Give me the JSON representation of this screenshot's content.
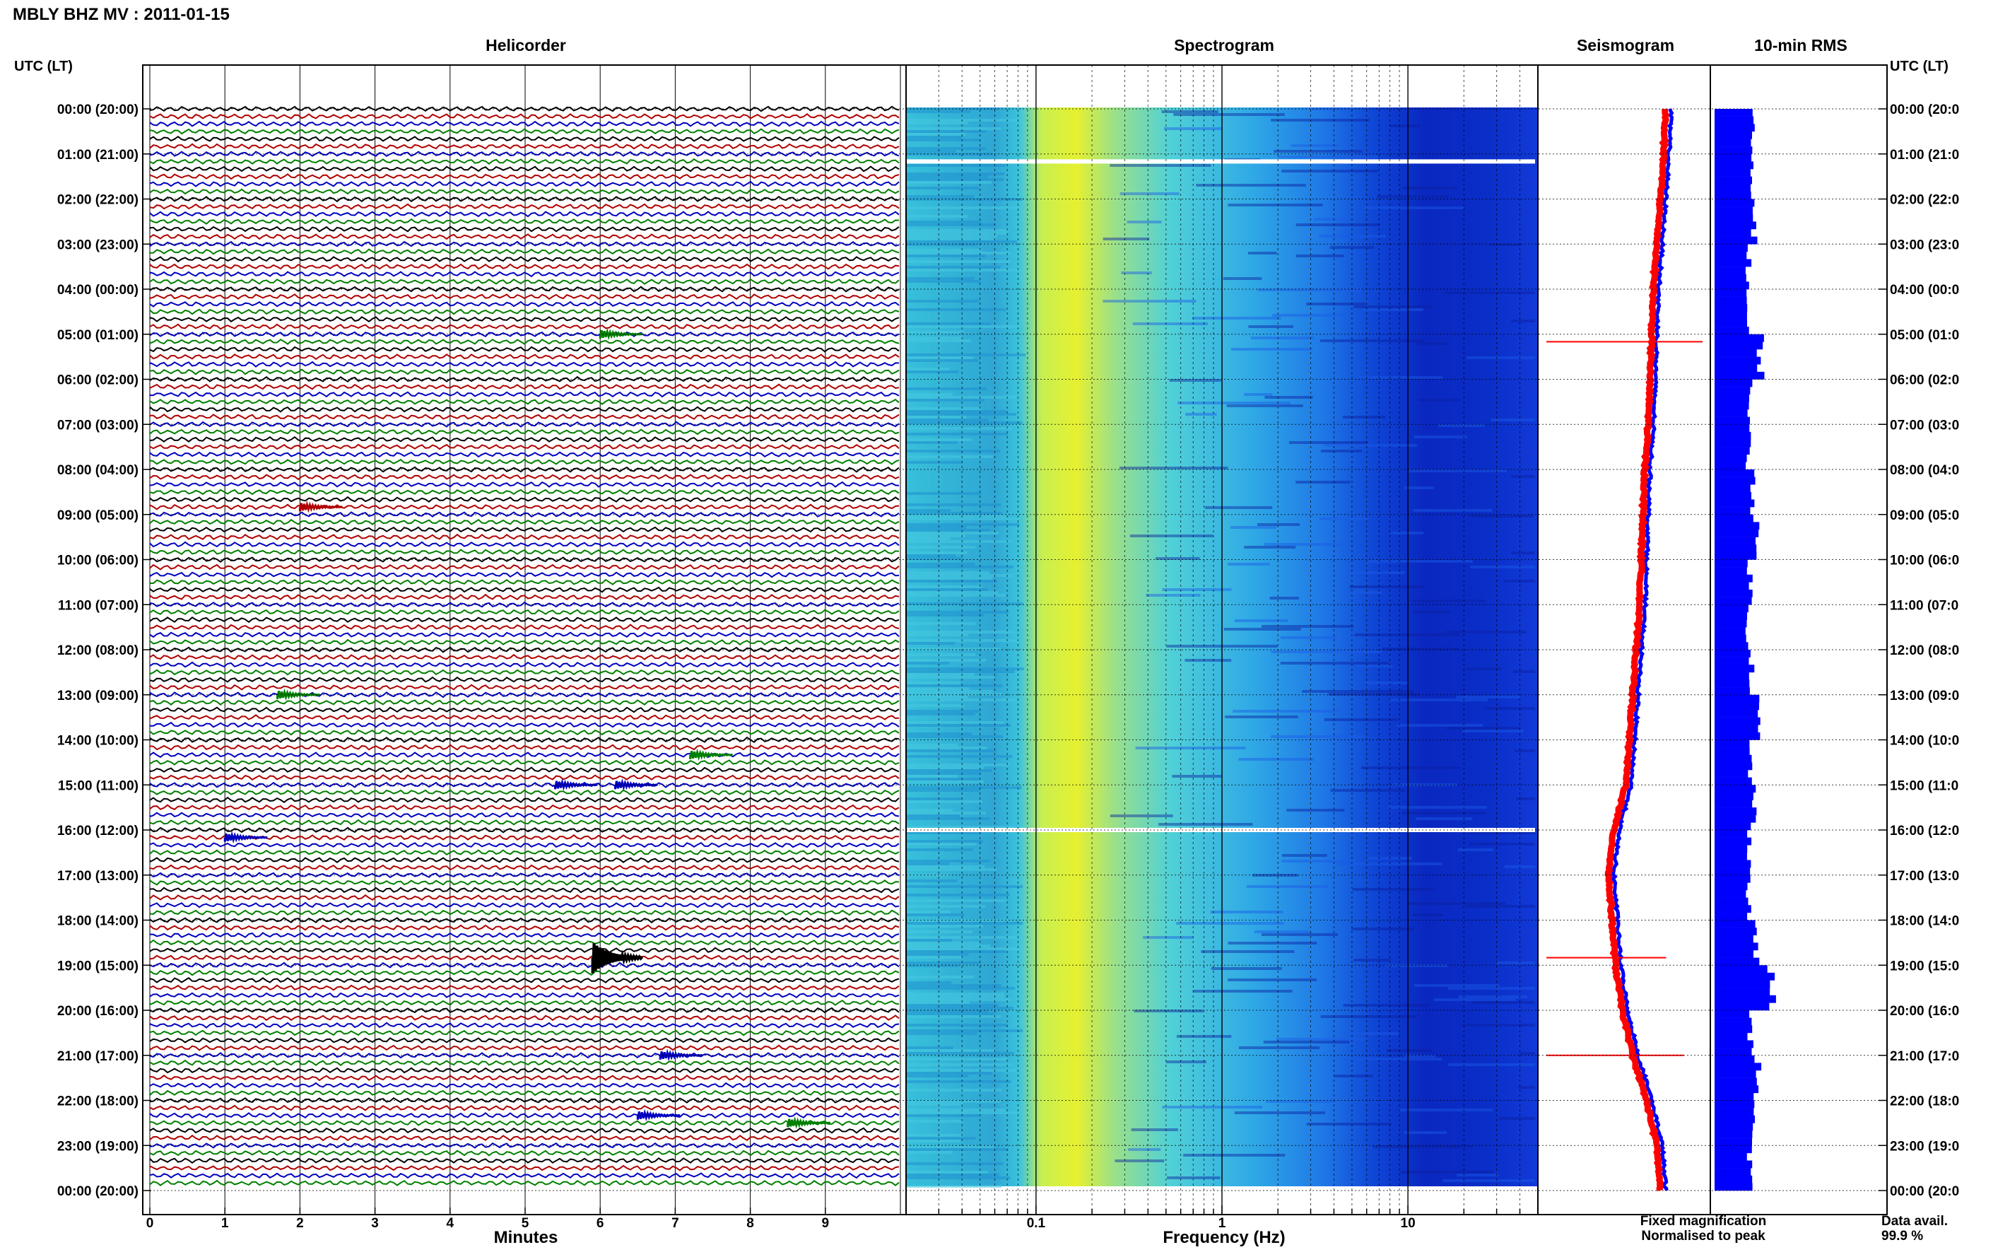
{
  "station_title": "MBLY BHZ MV : 2011-01-15",
  "panels": {
    "helicorder": "Helicorder",
    "spectrogram": "Spectrogram",
    "seismogram": "Seismogram",
    "rms": "10-min RMS"
  },
  "time_axis": {
    "left_title": "UTC (LT)",
    "right_title": "UTC (LT)",
    "labels": [
      "00:00 (20:00)",
      "01:00 (21:00)",
      "02:00 (22:00)",
      "03:00 (23:00)",
      "04:00 (00:00)",
      "05:00 (01:00)",
      "06:00 (02:00)",
      "07:00 (03:00)",
      "08:00 (04:00)",
      "09:00 (05:00)",
      "10:00 (06:00)",
      "11:00 (07:00)",
      "12:00 (08:00)",
      "13:00 (09:00)",
      "14:00 (10:00)",
      "15:00 (11:00)",
      "16:00 (12:00)",
      "17:00 (13:00)",
      "18:00 (14:00)",
      "19:00 (15:00)",
      "20:00 (16:00)",
      "21:00 (17:00)",
      "22:00 (18:00)",
      "23:00 (19:00)",
      "00:00 (20:00)"
    ],
    "right_labels": [
      "00:00 (20:0",
      "01:00 (21:0",
      "02:00 (22:0",
      "03:00 (23:0",
      "04:00 (00:0",
      "05:00 (01:0",
      "06:00 (02:0",
      "07:00 (03:0",
      "08:00 (04:0",
      "09:00 (05:0",
      "10:00 (06:0",
      "11:00 (07:0",
      "12:00 (08:0",
      "13:00 (09:0",
      "14:00 (10:0",
      "15:00 (11:0",
      "16:00 (12:0",
      "17:00 (13:0",
      "18:00 (14:0",
      "19:00 (15:0",
      "20:00 (16:0",
      "21:00 (17:0",
      "22:00 (18:0",
      "23:00 (19:0",
      "00:00 (20:0"
    ]
  },
  "minutes_axis": {
    "label": "Minutes",
    "ticks": [
      "0",
      "1",
      "2",
      "3",
      "4",
      "5",
      "6",
      "7",
      "8",
      "9"
    ]
  },
  "frequency_axis": {
    "label": "Frequency (Hz)",
    "ticks": [
      "0.1",
      "1",
      "10"
    ]
  },
  "legend": {
    "fixed": "Fixed magnification",
    "normalised": "Normalised to peak",
    "fixed_color": "#0000ff",
    "normalised_color": "#ff0000"
  },
  "data_avail": {
    "label": "Data avail.",
    "value": "99.9 %"
  },
  "colors": {
    "trace_cycle": [
      "#000000",
      "#b00000",
      "#0000c0",
      "#008000"
    ],
    "rms_fill": "#0000ff",
    "spectrogram_low": "#0000c8",
    "spectrogram_peak": "#f0f000"
  },
  "chart_data": [
    {
      "type": "line",
      "panel": "Helicorder",
      "xlabel": "Minutes",
      "xlim": [
        0,
        10
      ],
      "rows_per_hour": 6,
      "hours": 24,
      "events": [
        {
          "time_utc": "05:00",
          "minute": 6.0,
          "color": "#008000"
        },
        {
          "time_utc": "08:50",
          "minute": 2.0,
          "color": "#b00000"
        },
        {
          "time_utc": "13:00",
          "minute": 1.7,
          "color": "#008000"
        },
        {
          "time_utc": "14:20",
          "minute": 7.2,
          "color": "#008000"
        },
        {
          "time_utc": "15:00",
          "minute": 5.4,
          "color": "#0000c0"
        },
        {
          "time_utc": "15:00",
          "minute": 6.2,
          "color": "#0000c0"
        },
        {
          "time_utc": "16:10",
          "minute": 1.0,
          "color": "#0000c0"
        },
        {
          "time_utc": "18:50",
          "minute": 5.9,
          "color": "#000000"
        },
        {
          "time_utc": "21:00",
          "minute": 6.8,
          "color": "#0000c0"
        },
        {
          "time_utc": "22:20",
          "minute": 6.5,
          "color": "#0000c0"
        },
        {
          "time_utc": "22:30",
          "minute": 8.5,
          "color": "#008000"
        }
      ]
    },
    {
      "type": "heatmap",
      "panel": "Spectrogram",
      "xlabel": "Frequency (Hz)",
      "x_scale": "log",
      "xlim": [
        0.02,
        50
      ],
      "peak_frequency_hz": 0.2,
      "gaps_utc": [
        "01:10",
        "16:00"
      ]
    },
    {
      "type": "line",
      "panel": "Seismogram",
      "series": [
        {
          "name": "Fixed magnification",
          "color": "#0000ff"
        },
        {
          "name": "Normalised to peak",
          "color": "#ff0000"
        }
      ],
      "relative_position": [
        0.75,
        0.74,
        0.72,
        0.7,
        0.68,
        0.67,
        0.66,
        0.65,
        0.63,
        0.62,
        0.61,
        0.6,
        0.58,
        0.56,
        0.54,
        0.52,
        0.45,
        0.42,
        0.44,
        0.46,
        0.5,
        0.56,
        0.64,
        0.7,
        0.72
      ],
      "spikes_utc": [
        "05:10",
        "18:50",
        "21:00"
      ]
    },
    {
      "type": "bar",
      "panel": "10-min RMS",
      "orientation": "horizontal",
      "values": [
        0.42,
        0.4,
        0.45,
        0.38,
        0.36,
        0.52,
        0.4,
        0.38,
        0.44,
        0.46,
        0.4,
        0.38,
        0.42,
        0.48,
        0.4,
        0.44,
        0.4,
        0.38,
        0.46,
        0.64,
        0.4,
        0.48,
        0.42,
        0.4
      ]
    }
  ]
}
